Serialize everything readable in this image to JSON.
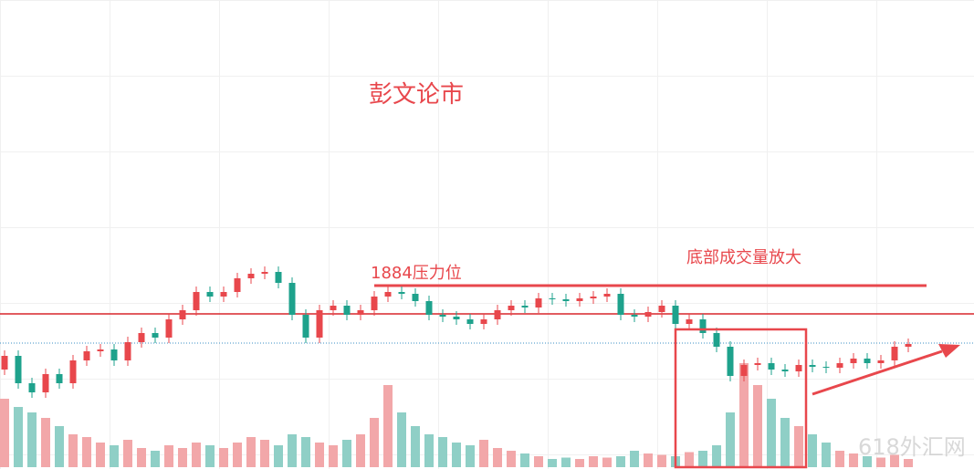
{
  "chart_data": {
    "type": "candlestick",
    "title": "彭文论市",
    "annotations": {
      "resistance_label": "1884压力位",
      "volume_label": "底部成交量放大",
      "watermark": "618外汇网"
    },
    "resistance_level": 1884,
    "horizontal_line": 1868.5,
    "price_line": 1852.5,
    "ylim": [
      1783.5,
      2040.5
    ],
    "volume_ylim": [
      0,
      500
    ],
    "up_color": "#e8474c",
    "down_color": "#1ea28c",
    "volume_up_color": "#f2a7a9",
    "volume_down_color": "#8fcfc6",
    "open": [
      1838,
      1845.5,
      1830.5,
      1825.5,
      1835.5,
      1830.5,
      1843,
      1848,
      1849,
      1843,
      1853,
      1858,
      1855.5,
      1865.5,
      1870.5,
      1880.5,
      1878,
      1880.5,
      1888,
      1890.5,
      1891.5,
      1885.5,
      1868,
      1855.5,
      1870.5,
      1873,
      1868,
      1870.5,
      1878,
      1880.5,
      1879.5,
      1875.5,
      1868,
      1867,
      1865.5,
      1863,
      1865.5,
      1870.5,
      1873,
      1872,
      1877,
      1876.5,
      1875.5,
      1877,
      1878,
      1879.5,
      1868,
      1867,
      1869.5,
      1873,
      1863,
      1865.5,
      1858,
      1850.5,
      1834.5,
      1840.5,
      1841.5,
      1838,
      1837,
      1840.5,
      1839.5,
      1839,
      1841.5,
      1844,
      1841.5,
      1843,
      1850.5
    ],
    "high": [
      1848.5,
      1848.5,
      1833.5,
      1838.5,
      1838.5,
      1846,
      1851,
      1852,
      1852,
      1856,
      1861,
      1861,
      1868.5,
      1873.5,
      1883.5,
      1883.5,
      1883.5,
      1891,
      1893.5,
      1894.5,
      1894.5,
      1888.5,
      1871,
      1873.5,
      1876,
      1876,
      1873.5,
      1881,
      1883.5,
      1883.5,
      1882.5,
      1878.5,
      1871,
      1870,
      1868.5,
      1868.5,
      1873.5,
      1876,
      1876,
      1880,
      1880,
      1879.5,
      1880,
      1881,
      1882.5,
      1882.5,
      1871,
      1872.5,
      1876,
      1876,
      1868.5,
      1868.5,
      1861,
      1853.5,
      1843.5,
      1844.5,
      1844.5,
      1841,
      1843.5,
      1843.5,
      1842.5,
      1844.5,
      1847,
      1847,
      1846,
      1853.5,
      1855
    ],
    "low": [
      1835,
      1827.5,
      1822.5,
      1822.5,
      1827.5,
      1827.5,
      1840,
      1845,
      1840,
      1840,
      1850,
      1852.5,
      1852.5,
      1862.5,
      1867.5,
      1875,
      1875,
      1877.5,
      1885,
      1887.5,
      1882.5,
      1865,
      1852.5,
      1852.5,
      1867.5,
      1865,
      1865,
      1867.5,
      1875,
      1876.5,
      1872.5,
      1865,
      1864,
      1862.5,
      1860,
      1860,
      1862.5,
      1867.5,
      1869,
      1869,
      1873.5,
      1872.5,
      1872.5,
      1874,
      1875,
      1865,
      1864,
      1864,
      1866.5,
      1860,
      1860,
      1855,
      1847.5,
      1831.5,
      1831.5,
      1837.5,
      1835,
      1834,
      1834,
      1836.5,
      1836,
      1836,
      1838.5,
      1838.5,
      1838.5,
      1840,
      1847.5
    ],
    "close": [
      1845.5,
      1830.5,
      1825.5,
      1835.5,
      1830.5,
      1843,
      1848,
      1849,
      1843,
      1853,
      1858,
      1855.5,
      1865.5,
      1870.5,
      1880.5,
      1878,
      1880.5,
      1888,
      1890.5,
      1891.5,
      1885.5,
      1868,
      1855.5,
      1870.5,
      1873,
      1868,
      1870.5,
      1878,
      1880.5,
      1879.5,
      1875.5,
      1868,
      1867,
      1865.5,
      1863,
      1865.5,
      1870.5,
      1873,
      1872,
      1877,
      1876.5,
      1875.5,
      1877,
      1878,
      1879.5,
      1868,
      1867,
      1869.5,
      1873,
      1863,
      1865.5,
      1858,
      1850.5,
      1834.5,
      1840.5,
      1841.5,
      1838,
      1837,
      1840.5,
      1839.5,
      1839,
      1841.5,
      1844,
      1841.5,
      1843,
      1850.5,
      1852
    ],
    "volume": [
      250,
      220,
      200,
      180,
      150,
      120,
      110,
      90,
      80,
      100,
      70,
      60,
      80,
      70,
      90,
      80,
      70,
      90,
      110,
      100,
      80,
      120,
      110,
      90,
      80,
      100,
      120,
      180,
      300,
      200,
      150,
      120,
      110,
      90,
      80,
      100,
      70,
      60,
      50,
      40,
      30,
      35,
      30,
      40,
      35,
      40,
      60,
      50,
      45,
      40,
      55,
      60,
      80,
      200,
      380,
      300,
      250,
      180,
      150,
      120,
      90,
      60,
      50,
      40,
      35,
      45,
      30
    ]
  }
}
